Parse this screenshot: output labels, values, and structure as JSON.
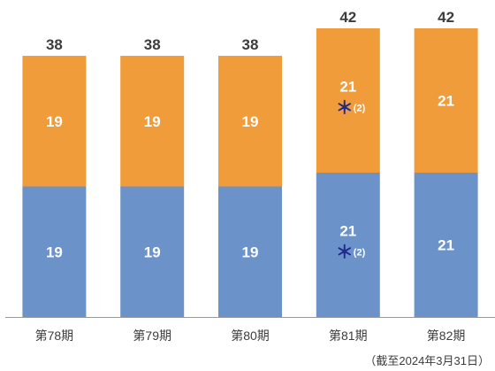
{
  "chart_data": {
    "type": "bar",
    "stacked": true,
    "categories": [
      "第78期",
      "第79期",
      "第80期",
      "第81期",
      "第82期"
    ],
    "series": [
      {
        "values": [
          19,
          19,
          19,
          21,
          21
        ],
        "color": "#6b93c9"
      },
      {
        "values": [
          19,
          19,
          19,
          21,
          21
        ],
        "color": "#f19c3a"
      }
    ],
    "totals": [
      38,
      38,
      38,
      42,
      42
    ],
    "annotations": [
      {
        "category": "第81期",
        "series_index": 0,
        "symbol": "＊",
        "text": "(2)",
        "color": "#1f2a8c"
      },
      {
        "category": "第81期",
        "series_index": 1,
        "symbol": "＊",
        "text": "(2)",
        "color": "#1f2a8c"
      }
    ],
    "ylim": [
      0,
      42
    ],
    "grid": false,
    "legend": "none",
    "footnote": "（截至2024年3月31日）"
  }
}
